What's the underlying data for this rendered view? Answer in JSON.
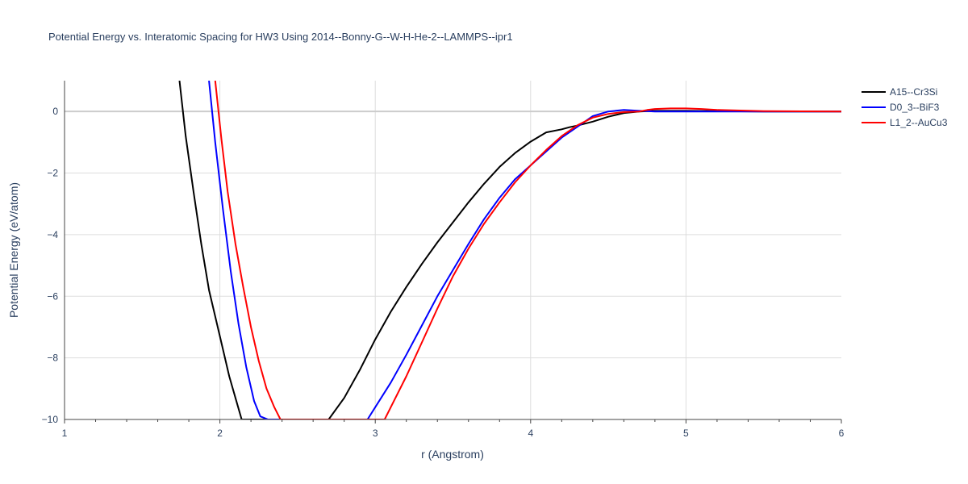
{
  "chart_data": {
    "type": "line",
    "title": "Potential Energy vs. Interatomic Spacing for HW3 Using 2014--Bonny-G--W-H-He-2--LAMMPS--ipr1",
    "xlabel": "r (Angstrom)",
    "ylabel": "Potential Energy (eV/atom)",
    "xlim": [
      1,
      6
    ],
    "ylim": [
      -10,
      1
    ],
    "x_ticks": [
      1,
      2,
      3,
      4,
      5,
      6
    ],
    "x_tick_labels": [
      "1",
      "2",
      "3",
      "4",
      "5",
      "6"
    ],
    "y_ticks": [
      0,
      -2,
      -4,
      -6,
      -8,
      -10
    ],
    "y_tick_labels": [
      "0",
      "−2",
      "−4",
      "−6",
      "−8",
      "−10"
    ],
    "grid": true,
    "legend_position": "top-right",
    "series": [
      {
        "name": "A15--Cr3Si",
        "color": "#000000",
        "x": [
          1.74,
          1.78,
          1.83,
          1.88,
          1.93,
          2.0,
          2.06,
          2.1,
          2.14,
          2.7,
          2.8,
          2.9,
          3.0,
          3.1,
          3.2,
          3.3,
          3.4,
          3.5,
          3.6,
          3.7,
          3.8,
          3.9,
          4.0,
          4.1,
          4.2,
          4.25,
          4.3,
          4.4,
          4.5,
          4.6,
          4.7,
          4.8,
          4.9,
          5.0,
          5.2,
          5.5,
          6.0
        ],
        "y": [
          1.0,
          -0.8,
          -2.6,
          -4.3,
          -5.8,
          -7.3,
          -8.6,
          -9.3,
          -10.0,
          -10.0,
          -9.3,
          -8.4,
          -7.4,
          -6.5,
          -5.7,
          -4.95,
          -4.25,
          -3.6,
          -2.95,
          -2.35,
          -1.8,
          -1.35,
          -0.98,
          -0.68,
          -0.58,
          -0.51,
          -0.46,
          -0.33,
          -0.17,
          -0.05,
          0.0,
          0.02,
          0.02,
          0.02,
          0.01,
          0.0,
          0.0
        ]
      },
      {
        "name": "D0_3--BiF3",
        "color": "#0000ff",
        "x": [
          1.93,
          1.97,
          2.02,
          2.07,
          2.12,
          2.17,
          2.22,
          2.26,
          2.31,
          2.95,
          3.1,
          3.2,
          3.3,
          3.4,
          3.5,
          3.6,
          3.7,
          3.8,
          3.9,
          4.0,
          4.1,
          4.2,
          4.3,
          4.4,
          4.5,
          4.6,
          4.7,
          4.75,
          4.8,
          5.0,
          5.2,
          5.5,
          6.0
        ],
        "y": [
          1.0,
          -1.0,
          -3.2,
          -5.2,
          -6.9,
          -8.3,
          -9.4,
          -9.9,
          -10.0,
          -10.0,
          -8.8,
          -7.9,
          -6.95,
          -6.0,
          -5.15,
          -4.3,
          -3.5,
          -2.8,
          -2.2,
          -1.75,
          -1.3,
          -0.85,
          -0.5,
          -0.15,
          0.0,
          0.05,
          0.02,
          0.01,
          0.0,
          0.0,
          0.0,
          0.0,
          0.0
        ]
      },
      {
        "name": "L1_2--AuCu3",
        "color": "#ff0000",
        "x": [
          1.97,
          2.01,
          2.05,
          2.1,
          2.15,
          2.2,
          2.25,
          2.3,
          2.35,
          2.39,
          3.06,
          3.1,
          3.2,
          3.3,
          3.4,
          3.5,
          3.6,
          3.7,
          3.8,
          3.9,
          4.0,
          4.1,
          4.2,
          4.3,
          4.4,
          4.5,
          4.6,
          4.7,
          4.75,
          4.8,
          4.9,
          5.0,
          5.1,
          5.2,
          5.5,
          6.0
        ],
        "y": [
          1.0,
          -0.9,
          -2.6,
          -4.3,
          -5.7,
          -7.0,
          -8.1,
          -9.0,
          -9.6,
          -10.0,
          -10.0,
          -9.6,
          -8.6,
          -7.5,
          -6.4,
          -5.35,
          -4.45,
          -3.65,
          -2.95,
          -2.3,
          -1.75,
          -1.25,
          -0.8,
          -0.45,
          -0.2,
          -0.08,
          -0.02,
          0.0,
          0.05,
          0.08,
          0.1,
          0.1,
          0.08,
          0.05,
          0.01,
          0.0
        ]
      }
    ]
  }
}
